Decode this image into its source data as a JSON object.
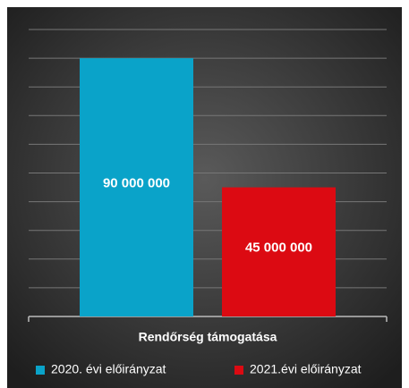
{
  "chart_data": {
    "type": "bar",
    "categories": [
      "Rendőrség támogatása"
    ],
    "series": [
      {
        "name": "2020. évi előirányzat",
        "color": "#0aa3c9",
        "values": [
          90000000
        ],
        "value_labels": [
          "90 000 000"
        ]
      },
      {
        "name": "2021.évi előirányzat",
        "color": "#dc0a12",
        "values": [
          45000000
        ],
        "value_labels": [
          "45 000 000"
        ]
      }
    ],
    "ylim": [
      0,
      100000000
    ],
    "yticks": [
      0,
      10000000,
      20000000,
      30000000,
      40000000,
      50000000,
      60000000,
      70000000,
      80000000,
      90000000,
      100000000
    ],
    "grid": true
  }
}
